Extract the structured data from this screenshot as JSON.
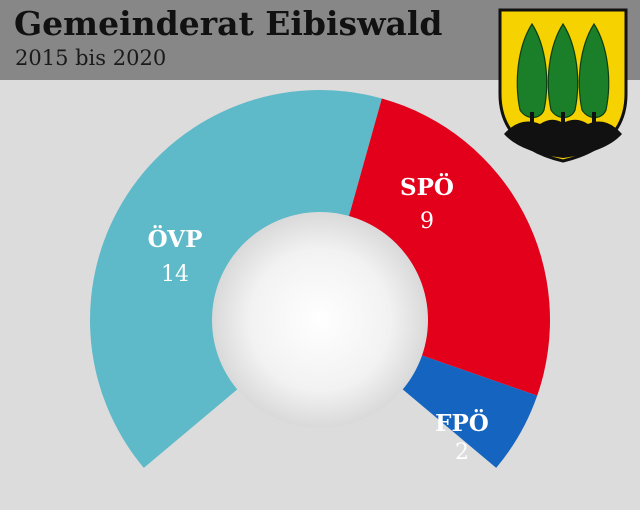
{
  "title": "Gemeinderat Eibiswald",
  "subtitle": "2015 bis 2020",
  "colors": {
    "header_bg": "#878787",
    "background": "#dcdcdc",
    "ÖVP": "#5eb9c8",
    "SPÖ": "#e2001a",
    "FPÖ": "#1565c0",
    "crest_field": "#f6d200"
  },
  "crest": {
    "icon": "coat-of-arms-three-cypress-trees"
  },
  "chart_data": {
    "type": "pie",
    "variant": "semicircle-donut",
    "total_seats": 25,
    "categories": [
      "ÖVP",
      "SPÖ",
      "FPÖ"
    ],
    "values": [
      14,
      9,
      2
    ]
  }
}
